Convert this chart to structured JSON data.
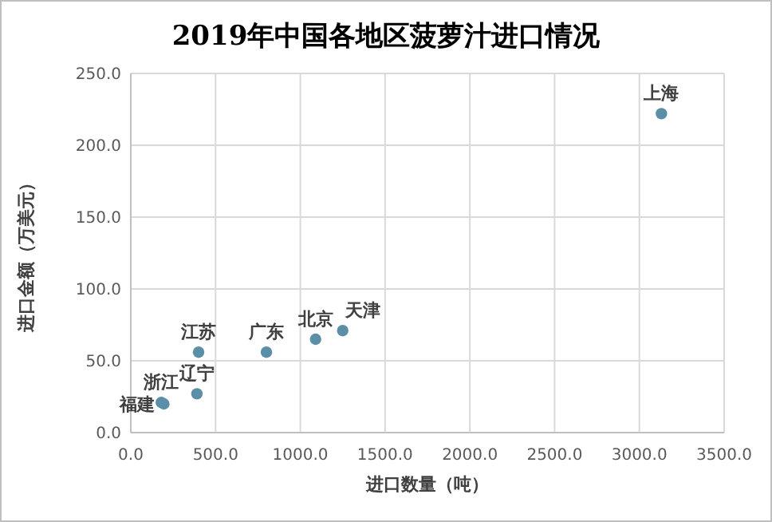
{
  "chart_data": {
    "type": "scatter",
    "title": "2019年中国各地区菠萝汁进口情况",
    "xlabel": "进口数量（吨）",
    "ylabel": "进口金额（万美元）",
    "x": [
      3130,
      400,
      390,
      180,
      195,
      800,
      1090,
      1250
    ],
    "values": [
      222,
      56,
      27,
      21,
      20,
      56,
      65,
      71
    ],
    "color": "#5b8fa8",
    "marker": "circle",
    "grid": true,
    "xlim": [
      0,
      3500
    ],
    "ylim": [
      0,
      250
    ],
    "xticks": [
      {
        "value": 0,
        "label": "0.0"
      },
      {
        "value": 500,
        "label": "500.0"
      },
      {
        "value": 1000,
        "label": "1000.0"
      },
      {
        "value": 1500,
        "label": "1500.0"
      },
      {
        "value": 2000,
        "label": "2000.0"
      },
      {
        "value": 2500,
        "label": "2500.0"
      },
      {
        "value": 3000,
        "label": "3000.0"
      },
      {
        "value": 3500,
        "label": "3500.0"
      }
    ],
    "yticks": [
      {
        "value": 0,
        "label": "0.0"
      },
      {
        "value": 50,
        "label": "50.0"
      },
      {
        "value": 100,
        "label": "100.0"
      },
      {
        "value": 150,
        "label": "150.0"
      },
      {
        "value": 200,
        "label": "200.0"
      },
      {
        "value": 250,
        "label": "250.0"
      }
    ],
    "annotations": [
      {
        "text": "上海",
        "x": 3130,
        "y": 222
      },
      {
        "text": "江苏",
        "x": 400,
        "y": 56
      },
      {
        "text": "辽宁",
        "x": 390,
        "y": 27
      },
      {
        "text": "浙江",
        "x": 180,
        "y": 21
      },
      {
        "text": "福建",
        "x": 195,
        "y": 20
      },
      {
        "text": "广东",
        "x": 800,
        "y": 56
      },
      {
        "text": "北京",
        "x": 1090,
        "y": 65
      },
      {
        "text": "天津",
        "x": 1250,
        "y": 71
      }
    ]
  }
}
